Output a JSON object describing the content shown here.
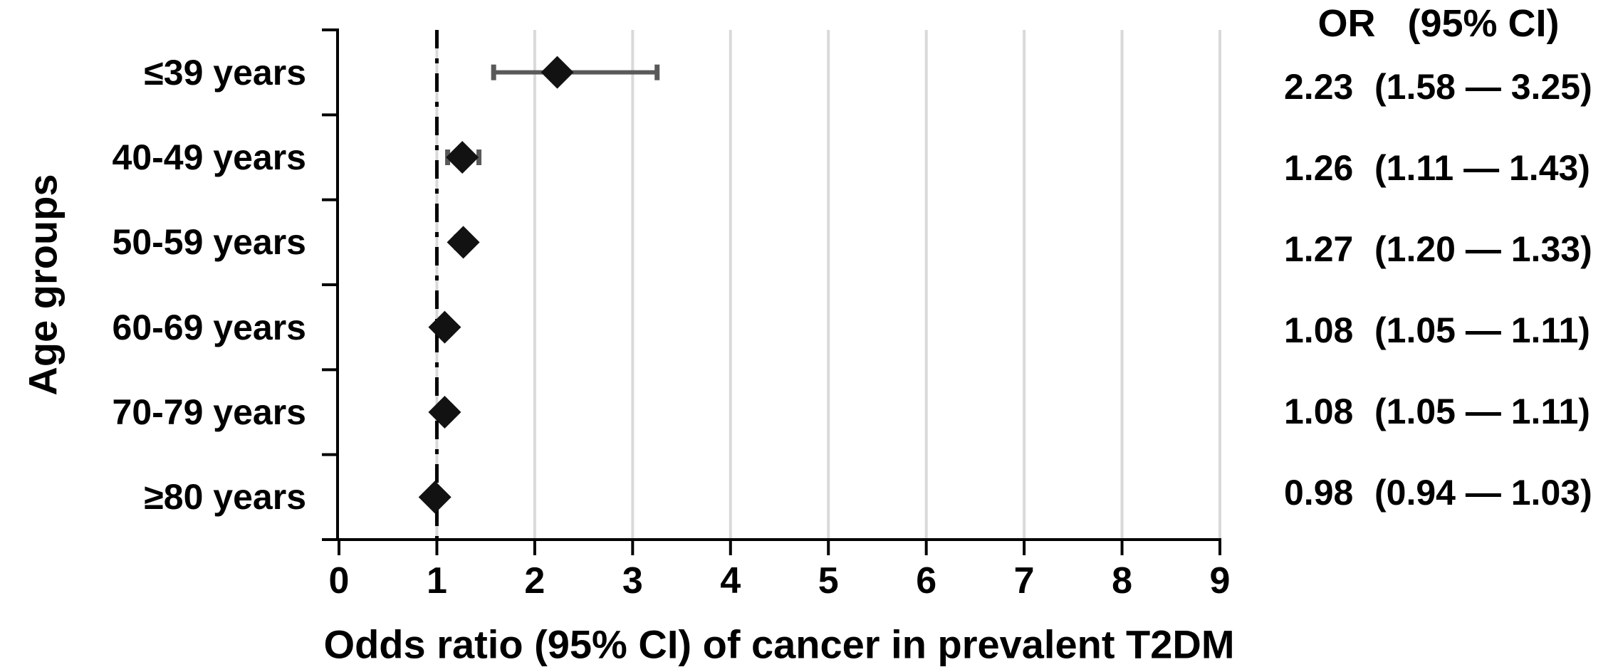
{
  "figure": {
    "y_axis_title": "Age groups",
    "x_axis_title": "Odds ratio (95% CI) of cancer in prevalent T2DM",
    "or_column_header": "OR   (95% CI)"
  },
  "chart_data": {
    "type": "scatter",
    "subtype": "forest-plot",
    "title": "",
    "xlabel": "Odds ratio (95% CI) of cancer in prevalent T2DM",
    "ylabel": "Age groups",
    "xlim": [
      0,
      9
    ],
    "xticks": [
      0,
      1,
      2,
      3,
      4,
      5,
      6,
      7,
      8,
      9
    ],
    "grid": "vertical gridlines on, light gray",
    "legend": "none",
    "reference_line_x": 1,
    "reference_line_style": "dash-dot",
    "categories": [
      "≤39 years",
      "40-49 years",
      "50-59 years",
      "60-69 years",
      "70-79 years",
      "≥80 years"
    ],
    "rows": [
      {
        "label": "≤39 years",
        "or": 2.23,
        "ci_low": 1.58,
        "ci_high": 3.25,
        "or_text": "2.23",
        "ci_text": "(1.58 — 3.25)"
      },
      {
        "label": "40-49 years",
        "or": 1.26,
        "ci_low": 1.11,
        "ci_high": 1.43,
        "or_text": "1.26",
        "ci_text": "(1.11 — 1.43)"
      },
      {
        "label": "50-59 years",
        "or": 1.27,
        "ci_low": 1.2,
        "ci_high": 1.33,
        "or_text": "1.27",
        "ci_text": "(1.20 — 1.33)"
      },
      {
        "label": "60-69 years",
        "or": 1.08,
        "ci_low": 1.05,
        "ci_high": 1.11,
        "or_text": "1.08",
        "ci_text": "(1.05 — 1.11)"
      },
      {
        "label": "70-79 years",
        "or": 1.08,
        "ci_low": 1.05,
        "ci_high": 1.11,
        "or_text": "1.08",
        "ci_text": "(1.05 — 1.11)"
      },
      {
        "label": "≥80 years",
        "or": 0.98,
        "ci_low": 0.94,
        "ci_high": 1.03,
        "or_text": "0.98",
        "ci_text": "(0.94 — 1.03)"
      }
    ],
    "colors": {
      "background": "#ffffff",
      "text": "#000000",
      "axis": "#000000",
      "gridline": "#d9d9d9",
      "reference_line": "#000000",
      "error_bar": "#595959",
      "diamond": "#121212"
    }
  }
}
